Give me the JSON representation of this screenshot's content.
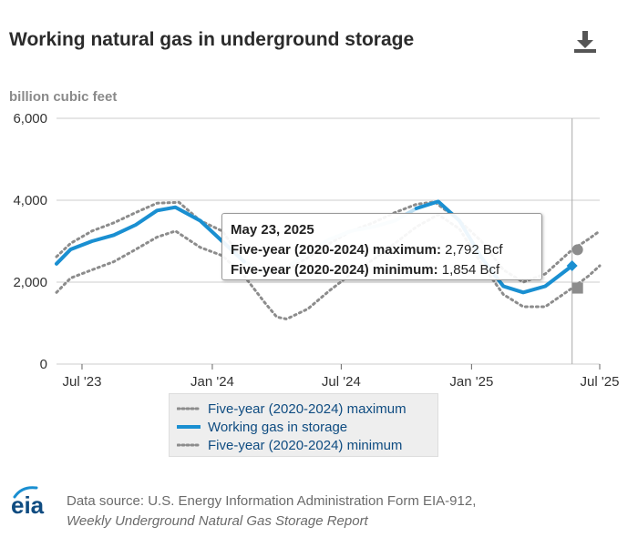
{
  "header": {
    "title": "Working natural gas in underground storage",
    "units": "billion cubic feet",
    "download_icon": "download-icon"
  },
  "legend": {
    "max_label": "Five-year (2020-2024) maximum",
    "storage_label": "Working gas in storage",
    "min_label": "Five-year (2020-2024) minimum"
  },
  "tooltip": {
    "date": "May 23, 2025",
    "max_label": "Five-year (2020-2024) maximum:",
    "max_value": "2,792 Bcf",
    "min_label": "Five-year (2020-2024) minimum:",
    "min_value": "1,854 Bcf"
  },
  "footer": {
    "logo_text": "eia",
    "source_line": "Data source: U.S. Energy Information Administration Form EIA-912,",
    "report_name": "Weekly Underground Natural Gas Storage Report"
  },
  "colors": {
    "storage": "#1a8fd1",
    "storage_faded": "#bfe0f3",
    "bounds": "#8c8c8c",
    "grid": "#cccccc"
  },
  "chart_data": {
    "type": "line",
    "ylabel": "billion cubic feet",
    "ylim": [
      0,
      6000
    ],
    "y_ticks": [
      "0",
      "2,000",
      "4,000",
      "6,000"
    ],
    "y_tick_values": [
      0,
      2000,
      4000,
      6000
    ],
    "x_ticks": [
      "Jul '23",
      "Jan '24",
      "Jul '24",
      "Jan '25",
      "Jul '25"
    ],
    "x_tick_values": [
      "2023-07-01",
      "2024-01-01",
      "2024-07-01",
      "2025-01-01",
      "2025-07-01"
    ],
    "xlim": [
      "2023-05-26",
      "2025-07-01"
    ],
    "hover_date": "2025-05-23",
    "series": [
      {
        "name": "Five-year (2020-2024) maximum",
        "style": "dotted",
        "points": [
          [
            "2023-05-26",
            2620
          ],
          [
            "2023-06-15",
            2950
          ],
          [
            "2023-07-15",
            3250
          ],
          [
            "2023-08-15",
            3450
          ],
          [
            "2023-09-15",
            3700
          ],
          [
            "2023-10-15",
            3930
          ],
          [
            "2023-11-15",
            3950
          ],
          [
            "2023-12-15",
            3500
          ],
          [
            "2024-01-15",
            3250
          ],
          [
            "2024-02-15",
            2500
          ],
          [
            "2024-03-15",
            2250
          ],
          [
            "2024-04-15",
            2300
          ],
          [
            "2024-05-15",
            2600
          ],
          [
            "2024-06-15",
            2950
          ],
          [
            "2024-07-15",
            3250
          ],
          [
            "2024-08-15",
            3450
          ],
          [
            "2024-09-15",
            3700
          ],
          [
            "2024-10-15",
            3900
          ],
          [
            "2024-11-10",
            3960
          ],
          [
            "2024-12-15",
            3500
          ],
          [
            "2025-01-15",
            3000
          ],
          [
            "2025-02-15",
            2300
          ],
          [
            "2025-03-15",
            2000
          ],
          [
            "2025-04-15",
            2200
          ],
          [
            "2025-05-23",
            2792
          ],
          [
            "2025-06-15",
            3050
          ],
          [
            "2025-07-01",
            3250
          ]
        ]
      },
      {
        "name": "Working gas in storage",
        "style": "solid",
        "points": [
          [
            "2023-05-26",
            2450
          ],
          [
            "2023-06-15",
            2800
          ],
          [
            "2023-07-15",
            3000
          ],
          [
            "2023-08-15",
            3150
          ],
          [
            "2023-09-15",
            3400
          ],
          [
            "2023-10-15",
            3750
          ],
          [
            "2023-11-10",
            3830
          ],
          [
            "2023-12-15",
            3500
          ],
          [
            "2024-01-15",
            3000
          ],
          [
            "2024-02-15",
            2500
          ],
          [
            "2024-03-15",
            2250
          ],
          [
            "2024-04-15",
            2350
          ],
          [
            "2024-05-15",
            2750
          ],
          [
            "2024-06-15",
            3050
          ],
          [
            "2024-07-15",
            3250
          ],
          [
            "2024-08-15",
            3350
          ],
          [
            "2024-09-15",
            3500
          ],
          [
            "2024-10-15",
            3800
          ],
          [
            "2024-11-15",
            3970
          ],
          [
            "2024-12-15",
            3500
          ],
          [
            "2025-01-15",
            2600
          ],
          [
            "2025-02-15",
            1900
          ],
          [
            "2025-03-15",
            1750
          ],
          [
            "2025-04-15",
            1900
          ],
          [
            "2025-05-23",
            2400
          ]
        ]
      },
      {
        "name": "Five-year (2020-2024) minimum",
        "style": "dotted",
        "points": [
          [
            "2023-05-26",
            1750
          ],
          [
            "2023-06-15",
            2100
          ],
          [
            "2023-07-15",
            2300
          ],
          [
            "2023-08-15",
            2500
          ],
          [
            "2023-09-15",
            2800
          ],
          [
            "2023-10-15",
            3100
          ],
          [
            "2023-11-10",
            3250
          ],
          [
            "2023-12-15",
            2850
          ],
          [
            "2024-01-15",
            2650
          ],
          [
            "2024-02-15",
            2150
          ],
          [
            "2024-03-15",
            1500
          ],
          [
            "2024-04-01",
            1150
          ],
          [
            "2024-04-15",
            1100
          ],
          [
            "2024-05-15",
            1350
          ],
          [
            "2024-06-15",
            1800
          ],
          [
            "2024-07-15",
            2200
          ],
          [
            "2024-08-15",
            2550
          ],
          [
            "2024-09-15",
            2950
          ],
          [
            "2024-10-15",
            3350
          ],
          [
            "2024-11-15",
            3650
          ],
          [
            "2024-12-15",
            3300
          ],
          [
            "2025-01-15",
            2450
          ],
          [
            "2025-02-15",
            1700
          ],
          [
            "2025-03-15",
            1400
          ],
          [
            "2025-04-15",
            1400
          ],
          [
            "2025-05-23",
            1854
          ],
          [
            "2025-06-15",
            2150
          ],
          [
            "2025-07-01",
            2400
          ]
        ]
      }
    ]
  }
}
